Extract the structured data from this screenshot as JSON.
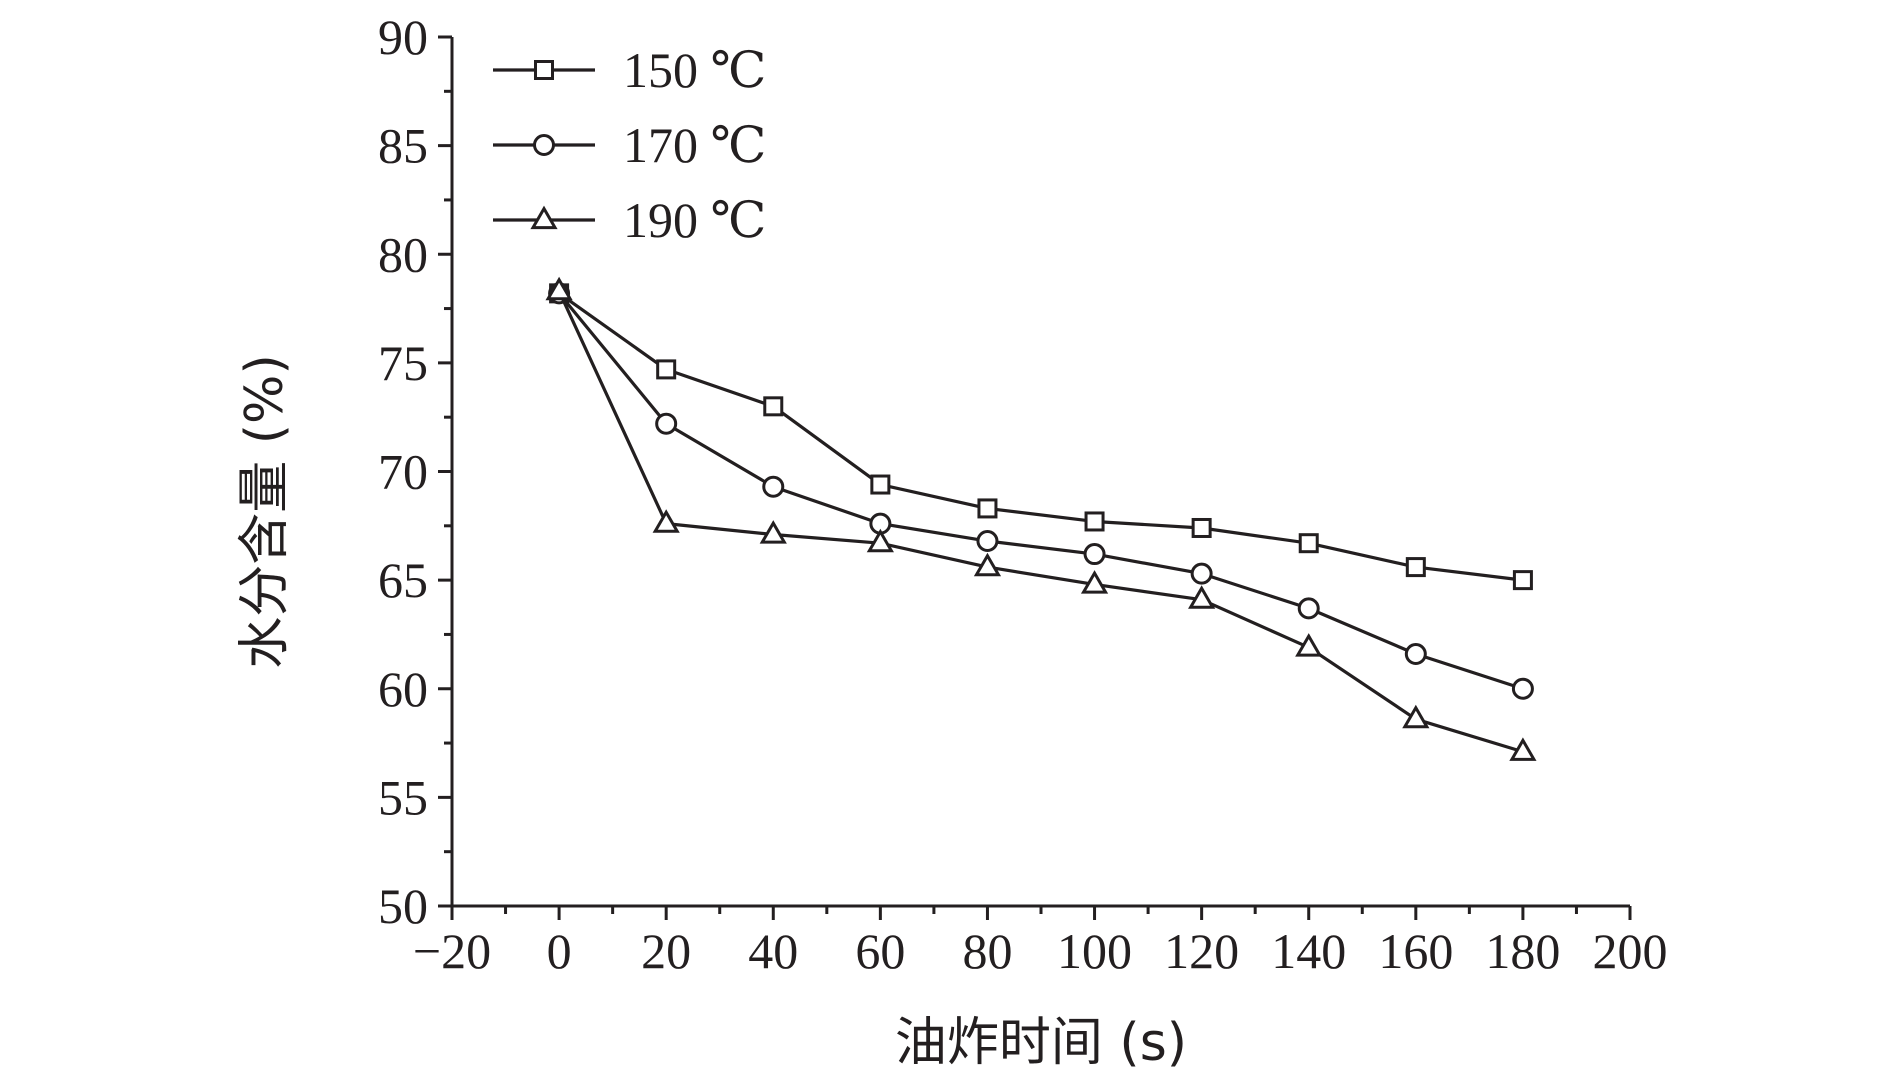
{
  "chart_data": {
    "type": "line",
    "title": "",
    "xlabel": "油炸时间 (s)",
    "ylabel": "水分含量 (%)",
    "xlim": [
      -20,
      200
    ],
    "ylim": [
      50,
      90
    ],
    "xticks": [
      "−20",
      "0",
      "20",
      "40",
      "60",
      "80",
      "100",
      "120",
      "140",
      "160",
      "180",
      "200"
    ],
    "xtick_values": [
      -20,
      0,
      20,
      40,
      60,
      80,
      100,
      120,
      140,
      160,
      180,
      200
    ],
    "yticks": [
      "50",
      "55",
      "60",
      "65",
      "70",
      "75",
      "80",
      "85",
      "90"
    ],
    "ytick_values": [
      50,
      55,
      60,
      65,
      70,
      75,
      80,
      85,
      90
    ],
    "grid": false,
    "legend_position": "top-left",
    "x": [
      0,
      20,
      40,
      60,
      80,
      100,
      120,
      140,
      160,
      180
    ],
    "series": [
      {
        "name": "150 ℃",
        "marker": "square",
        "values": [
          78.2,
          74.7,
          73.0,
          69.4,
          68.3,
          67.7,
          67.4,
          66.7,
          65.6,
          65.0
        ]
      },
      {
        "name": "170 ℃",
        "marker": "circle",
        "values": [
          78.2,
          72.2,
          69.3,
          67.6,
          66.8,
          66.2,
          65.3,
          63.7,
          61.6,
          60.0
        ]
      },
      {
        "name": "190 ℃",
        "marker": "triangle",
        "values": [
          78.3,
          67.6,
          67.1,
          66.7,
          65.6,
          64.8,
          64.1,
          61.9,
          58.6,
          57.1
        ]
      }
    ],
    "colors": {
      "line": "#231f20",
      "marker_fill": "#ffffff"
    }
  }
}
